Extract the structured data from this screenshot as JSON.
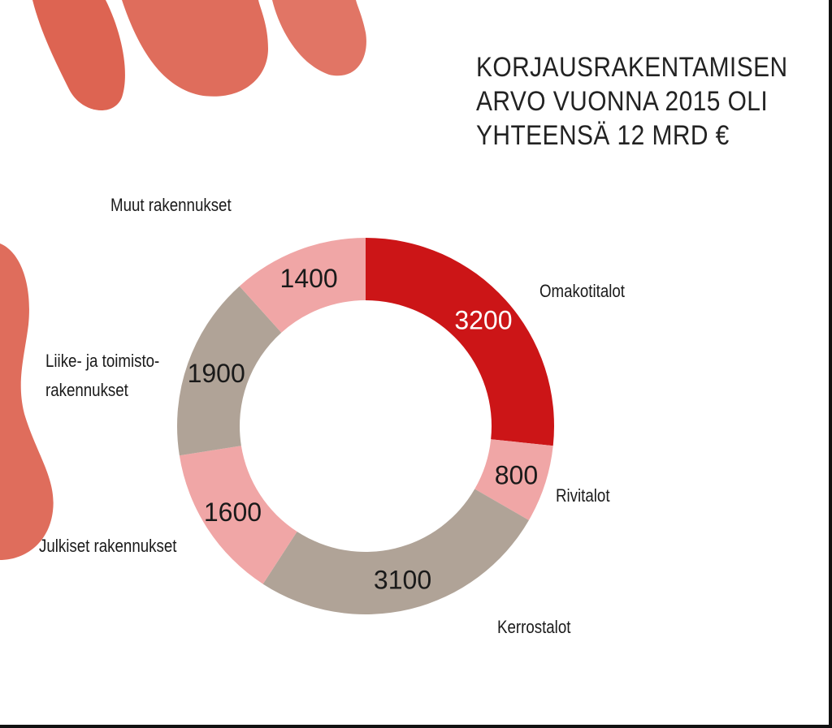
{
  "title": {
    "line1": "KORJAUSRAKENTAMISEN",
    "line2": "ARVO VUONNA 2015 OLI",
    "line3": "YHTEENSÄ 12 MRD €"
  },
  "chart_data": {
    "type": "pie",
    "title": "KORJAUSRAKENTAMISEN ARVO VUONNA 2015 OLI YHTEENSÄ 12 MRD €",
    "slices": [
      {
        "label": "Omakotitalot",
        "value": 3200,
        "value_text": "3200",
        "color": "#cc1517",
        "text_color": "#ffffff"
      },
      {
        "label": "Rivitalot",
        "value": 800,
        "value_text": "800",
        "color": "#f0a6a6",
        "text_color": "#1a1a1a"
      },
      {
        "label": "Kerrostalot",
        "value": 3100,
        "value_text": "3100",
        "color": "#b0a397",
        "text_color": "#1a1a1a"
      },
      {
        "label": "Julkiset rakennukset",
        "value": 1600,
        "value_text": "1600",
        "color": "#f0a6a6",
        "text_color": "#1a1a1a"
      },
      {
        "label_line1": "Liike- ja toimisto-",
        "label_line2": "rakennukset",
        "value": 1900,
        "value_text": "1900",
        "color": "#b0a397",
        "text_color": "#1a1a1a"
      },
      {
        "label": "Muut rakennukset",
        "value": 1400,
        "value_text": "1400",
        "color": "#f0a6a6",
        "text_color": "#1a1a1a"
      }
    ],
    "start_angle_deg": 0,
    "direction": "clockwise"
  },
  "decor_color": "#d9533f"
}
